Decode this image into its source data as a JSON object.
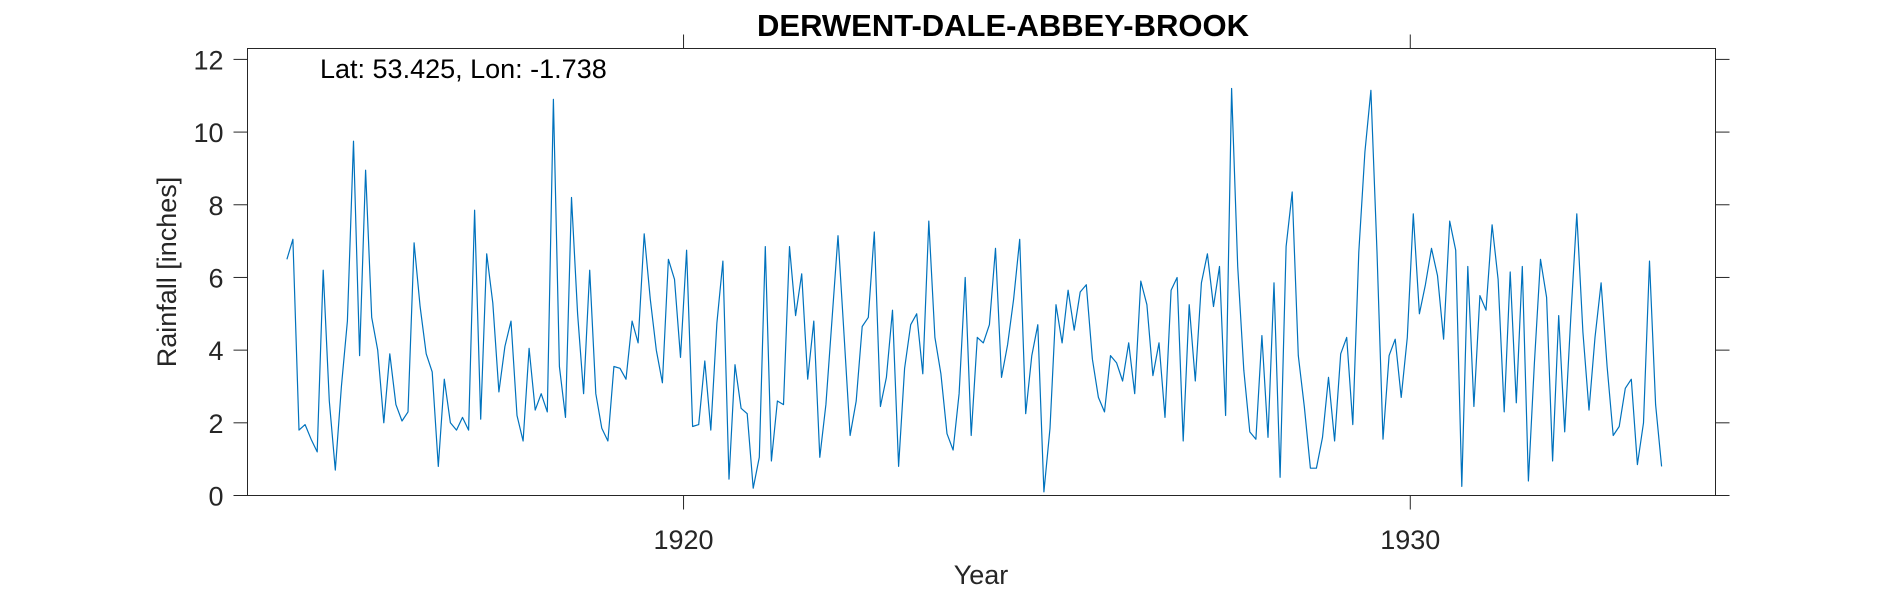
{
  "chart_data": {
    "type": "line",
    "title": "DERWENT-DALE-ABBEY-BROOK",
    "xlabel": "Year",
    "ylabel": "Rainfall [inches]",
    "annotation": "Lat: 53.425, Lon: -1.738",
    "xlim": [
      1914,
      1934.2
    ],
    "ylim": [
      0,
      12.3
    ],
    "xticks": [
      1920,
      1930
    ],
    "yticks": [
      0,
      2,
      4,
      6,
      8,
      10,
      12
    ],
    "grid": false,
    "series_color": "#0072BD",
    "series": [
      {
        "x_start": 1914.542,
        "x_step": 0.0833333,
        "values": [
          6.5,
          7.05,
          1.8,
          1.95,
          1.55,
          1.2,
          6.2,
          2.6,
          0.7,
          3.0,
          4.8,
          9.75,
          3.85,
          8.95,
          4.9,
          4.0,
          2.0,
          3.9,
          2.5,
          2.05,
          2.3,
          6.95,
          5.2,
          3.9,
          3.4,
          0.8,
          3.2,
          2.0,
          1.8,
          2.15,
          1.8,
          7.85,
          2.1,
          6.65,
          5.3,
          2.85,
          4.1,
          4.8,
          2.2,
          1.5,
          4.05,
          2.35,
          2.8,
          2.3,
          10.9,
          3.55,
          2.15,
          8.2,
          5.0,
          2.8,
          6.2,
          2.8,
          1.85,
          1.5,
          3.55,
          3.5,
          3.2,
          4.8,
          4.2,
          7.2,
          5.4,
          4.0,
          3.1,
          6.5,
          5.95,
          3.8,
          6.75,
          1.9,
          1.95,
          3.7,
          1.8,
          4.75,
          6.45,
          0.45,
          3.6,
          2.4,
          2.25,
          0.2,
          1.05,
          6.85,
          0.95,
          2.6,
          2.5,
          6.85,
          4.95,
          6.1,
          3.2,
          4.8,
          1.05,
          2.5,
          4.8,
          7.15,
          4.4,
          1.65,
          2.6,
          4.65,
          4.9,
          7.25,
          2.45,
          3.25,
          5.1,
          0.8,
          3.5,
          4.7,
          5.0,
          3.35,
          7.55,
          4.35,
          3.35,
          1.7,
          1.25,
          2.8,
          6.0,
          1.65,
          4.35,
          4.2,
          4.7,
          6.8,
          3.25,
          4.15,
          5.4,
          7.05,
          2.25,
          3.85,
          4.7,
          0.1,
          1.85,
          5.25,
          4.2,
          5.65,
          4.55,
          5.6,
          5.8,
          3.75,
          2.7,
          2.3,
          3.85,
          3.65,
          3.15,
          4.2,
          2.8,
          5.9,
          5.25,
          3.3,
          4.2,
          2.15,
          5.65,
          6.0,
          1.5,
          5.25,
          3.15,
          5.85,
          6.65,
          5.2,
          6.3,
          2.2,
          11.2,
          6.3,
          3.45,
          1.75,
          1.55,
          4.4,
          1.6,
          5.85,
          0.5,
          6.85,
          8.35,
          3.85,
          2.45,
          0.75,
          0.75,
          1.6,
          3.25,
          1.5,
          3.9,
          4.35,
          1.95,
          6.7,
          9.45,
          11.15,
          6.7,
          1.55,
          3.85,
          4.3,
          2.7,
          4.35,
          7.75,
          5.0,
          5.8,
          6.8,
          6.05,
          4.3,
          7.55,
          6.75,
          0.25,
          6.3,
          2.45,
          5.5,
          5.1,
          7.45,
          5.95,
          2.3,
          6.15,
          2.55,
          6.3,
          0.4,
          3.65,
          6.5,
          5.45,
          0.95,
          4.95,
          1.75,
          4.9,
          7.75,
          4.5,
          2.35,
          4.35,
          5.85,
          3.55,
          1.65,
          1.9,
          2.95,
          3.2,
          0.85,
          2.0,
          6.45,
          2.5,
          0.8
        ]
      }
    ]
  }
}
